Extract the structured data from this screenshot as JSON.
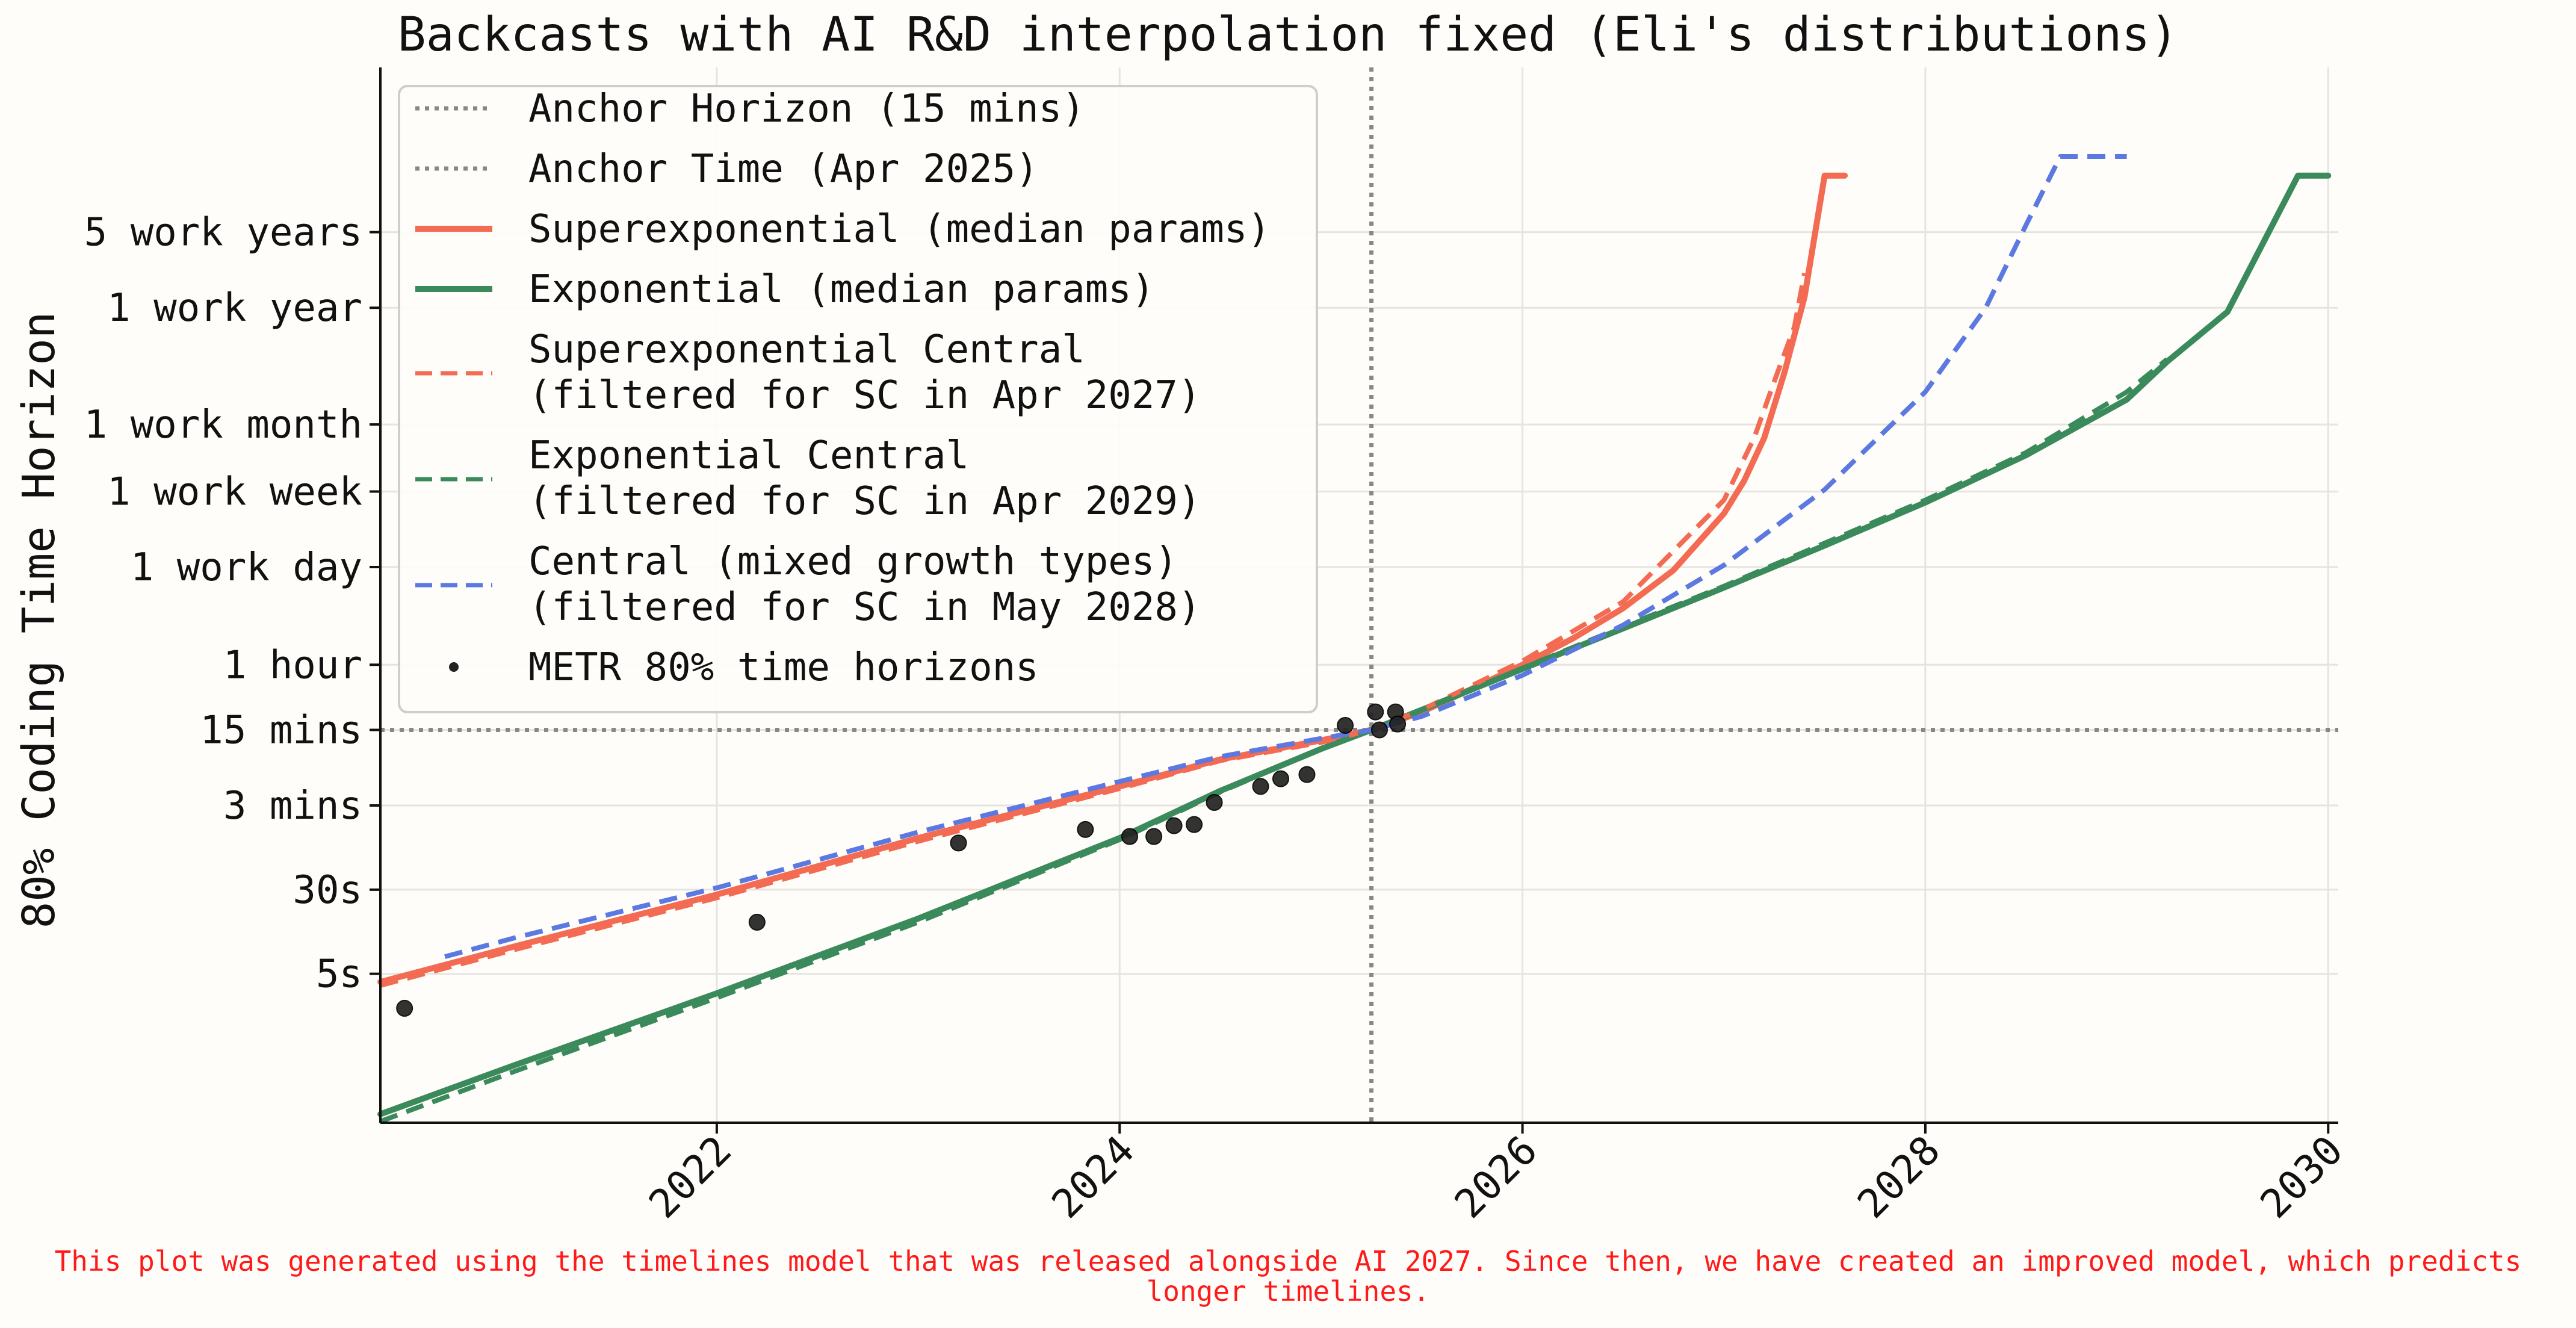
{
  "chart_data": {
    "type": "line",
    "title": "Backcasts with AI R&D interpolation fixed (Eli's distributions)",
    "ylabel": "80% Coding Time Horizon",
    "xlabel": "",
    "xlim": [
      2020.33,
      2030.05
    ],
    "x_ticks": [
      2022,
      2024,
      2026,
      2028,
      2030
    ],
    "x_tick_labels": [
      "2022",
      "2024",
      "2026",
      "2028",
      "2030"
    ],
    "y_scale": "log (minutes)",
    "ylim_minutes": [
      0.0035,
      20000000
    ],
    "y_ticks": [
      {
        "label": "5 work years",
        "minutes": 600000
      },
      {
        "label": "1 work year",
        "minutes": 120000
      },
      {
        "label": "1 work month",
        "minutes": 10000
      },
      {
        "label": "1 work week",
        "minutes": 2400
      },
      {
        "label": "1 work day",
        "minutes": 480
      },
      {
        "label": "1 hour",
        "minutes": 60
      },
      {
        "label": "15 mins",
        "minutes": 15
      },
      {
        "label": "3 mins",
        "minutes": 3
      },
      {
        "label": "30s",
        "minutes": 0.5
      },
      {
        "label": "5s",
        "minutes": 0.0833
      }
    ],
    "grid": true,
    "legend_position": "top-left",
    "legend": [
      {
        "label": "Anchor Horizon (15 mins)",
        "color": "#888888",
        "style": "dotted"
      },
      {
        "label": "Anchor Time (Apr 2025)",
        "color": "#888888",
        "style": "dotted"
      },
      {
        "label": "Superexponential (median params)",
        "color": "#f26b52",
        "style": "solid"
      },
      {
        "label": "Exponential (median params)",
        "color": "#3b8a5c",
        "style": "solid"
      },
      {
        "label": "Superexponential Central",
        "label2": "(filtered for SC in Apr 2027)",
        "color": "#f26b52",
        "style": "dashed"
      },
      {
        "label": "Exponential Central",
        "label2": "(filtered for SC in Apr 2029)",
        "color": "#3b8a5c",
        "style": "dashed"
      },
      {
        "label": "Central (mixed growth types)",
        "label2": "(filtered for SC in May 2028)",
        "color": "#5b79e0",
        "style": "dashed"
      },
      {
        "label": "METR 80% time horizons",
        "color": "#222222",
        "style": "marker"
      }
    ],
    "anchor_horizon_minutes": 15,
    "anchor_time": 2025.25,
    "series": [
      {
        "name": "Superexponential (median params)",
        "color": "#f26b52",
        "style": "solid",
        "x": [
          2020.33,
          2021.0,
          2022.0,
          2023.0,
          2024.0,
          2024.5,
          2025.0,
          2025.25,
          2025.5,
          2025.75,
          2026.0,
          2026.25,
          2026.5,
          2026.75,
          2027.0,
          2027.1,
          2027.2,
          2027.3,
          2027.4,
          2027.45,
          2027.5,
          2027.6
        ],
        "y": [
          0.07,
          0.15,
          0.45,
          1.5,
          4.5,
          8,
          12,
          15,
          22,
          36,
          60,
          105,
          200,
          450,
          1500,
          3000,
          7500,
          30000,
          150000,
          550000,
          2000000,
          2000000
        ]
      },
      {
        "name": "Exponential (median params)",
        "color": "#3b8a5c",
        "style": "solid",
        "x": [
          2020.33,
          2021.0,
          2022.0,
          2023.0,
          2024.0,
          2024.5,
          2025.0,
          2025.25,
          2025.5,
          2026.0,
          2026.5,
          2027.0,
          2027.5,
          2028.0,
          2028.5,
          2029.0,
          2029.2,
          2029.5,
          2029.85,
          2030.0
        ],
        "y": [
          0.0042,
          0.012,
          0.055,
          0.27,
          1.5,
          4.1,
          10,
          15,
          23,
          55,
          130,
          310,
          760,
          1900,
          5200,
          17000,
          38000,
          110000,
          2000000,
          2000000
        ]
      },
      {
        "name": "Superexponential Central (filtered for SC in Apr 2027)",
        "color": "#f26b52",
        "style": "dashed",
        "x": [
          2020.33,
          2021.0,
          2022.0,
          2023.0,
          2024.0,
          2024.5,
          2025.0,
          2025.25,
          2025.5,
          2026.0,
          2026.5,
          2027.0,
          2027.15,
          2027.25,
          2027.35,
          2027.4
        ],
        "y": [
          0.065,
          0.14,
          0.42,
          1.4,
          4.3,
          7.8,
          11.5,
          15,
          23,
          65,
          230,
          2000,
          7500,
          25000,
          80000,
          250000
        ]
      },
      {
        "name": "Exponential Central (filtered for SC in Apr 2029)",
        "color": "#3b8a5c",
        "style": "dashed",
        "x": [
          2020.33,
          2021.0,
          2022.0,
          2023.0,
          2024.0,
          2024.5,
          2025.0,
          2025.25,
          2025.5,
          2026.0,
          2026.5,
          2027.0,
          2027.5,
          2028.0,
          2028.5,
          2029.0,
          2029.2
        ],
        "y": [
          0.0036,
          0.0105,
          0.05,
          0.25,
          1.45,
          4.0,
          10,
          15,
          23,
          56,
          135,
          320,
          800,
          2000,
          5500,
          20000,
          40000
        ]
      },
      {
        "name": "Central (mixed growth types) (filtered for SC in May 2028)",
        "color": "#5b79e0",
        "style": "dashed",
        "x": [
          2020.65,
          2021.0,
          2022.0,
          2023.0,
          2024.0,
          2024.5,
          2025.0,
          2025.25,
          2025.5,
          2026.0,
          2026.5,
          2027.0,
          2027.5,
          2028.0,
          2028.3,
          2028.5,
          2028.67,
          2029.0
        ],
        "y": [
          0.12,
          0.18,
          0.52,
          1.7,
          5.0,
          8.5,
          12.5,
          15,
          20,
          48,
          140,
          500,
          2500,
          20000,
          120000,
          700000,
          3000000,
          3000000
        ]
      }
    ],
    "scatter": {
      "name": "METR 80% time horizons",
      "color": "#222222",
      "x": [
        2020.45,
        2022.2,
        2023.2,
        2023.83,
        2024.05,
        2024.17,
        2024.27,
        2024.37,
        2024.47,
        2024.7,
        2024.8,
        2024.93,
        2025.12,
        2025.27,
        2025.29,
        2025.37,
        2025.38
      ],
      "y": [
        0.04,
        0.25,
        1.35,
        1.8,
        1.55,
        1.55,
        1.95,
        2.0,
        3.2,
        4.5,
        5.3,
        5.8,
        16.5,
        22,
        15,
        22,
        17
      ]
    }
  },
  "footnote": {
    "line1": "This plot was generated using the timelines model that was released alongside AI 2027. Since then, we have created an improved model, which predicts",
    "line2": "longer timelines."
  }
}
